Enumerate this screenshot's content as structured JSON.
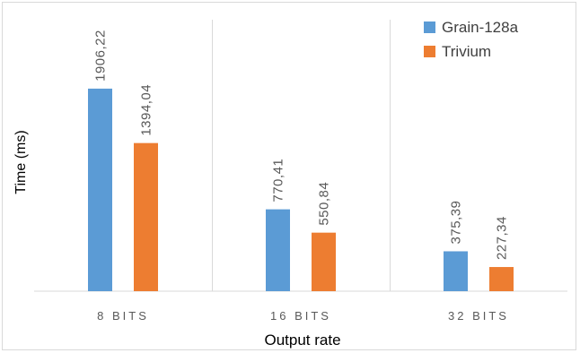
{
  "chart_data": {
    "type": "bar",
    "title": "",
    "xlabel": "Output rate",
    "ylabel": "Time (ms)",
    "categories": [
      "8 BITS",
      "16 BITS",
      "32 BITS"
    ],
    "series": [
      {
        "name": "Grain-128a",
        "color": "#5b9bd5",
        "values": [
          1906.22,
          770.41,
          375.39
        ],
        "labels": [
          "1906,22",
          "770,41",
          "375,39"
        ]
      },
      {
        "name": "Trivium",
        "color": "#ed7d31",
        "values": [
          1394.04,
          550.84,
          227.34
        ],
        "labels": [
          "1394,04",
          "550,84",
          "227,34"
        ]
      }
    ],
    "ylim": [
      0,
      2400
    ],
    "grid": "vertical separators",
    "legend": "top-right"
  }
}
